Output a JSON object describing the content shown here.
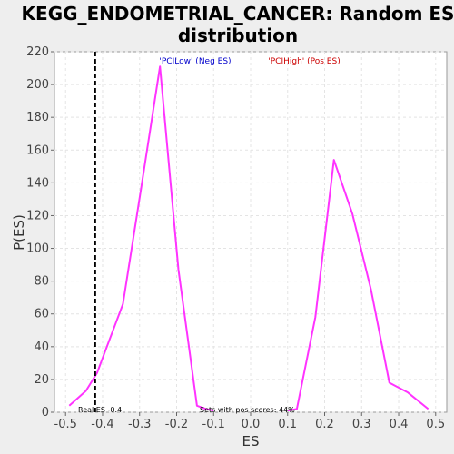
{
  "chart_data": {
    "type": "line",
    "title_line1": "KEGG_ENDOMETRIAL_CANCER: Random ES",
    "title_line2": "distribution",
    "xlabel": "ES",
    "ylabel": "P(ES)",
    "xlim": [
      -0.53,
      0.53
    ],
    "ylim": [
      0,
      220
    ],
    "xticks": [
      -0.5,
      -0.4,
      -0.3,
      -0.2,
      -0.1,
      0.0,
      0.1,
      0.2,
      0.3,
      0.4,
      0.5
    ],
    "xtick_labels": [
      "-0.5",
      "-0.4",
      "-0.3",
      "-0.2",
      "-0.1",
      "0.0",
      "0.1",
      "0.2",
      "0.3",
      "0.4",
      "0.5"
    ],
    "yticks": [
      0,
      20,
      40,
      60,
      80,
      100,
      120,
      140,
      160,
      180,
      200,
      220
    ],
    "ytick_labels": [
      "0",
      "20",
      "40",
      "60",
      "80",
      "100",
      "120",
      "140",
      "160",
      "180",
      "200",
      "220"
    ],
    "grid": true,
    "series": [
      {
        "color": "#ff33ff",
        "x": [
          -0.49,
          -0.445,
          -0.415,
          -0.395,
          -0.345,
          -0.295,
          -0.245,
          -0.195,
          -0.145,
          -0.12,
          -0.1
        ],
        "y": [
          4,
          13,
          24,
          36,
          66,
          138,
          211,
          87,
          4,
          2,
          1
        ]
      },
      {
        "color": "#ff33ff",
        "x": [
          0.1,
          0.125,
          0.175,
          0.225,
          0.275,
          0.325,
          0.375,
          0.425,
          0.48
        ],
        "y": [
          1,
          2,
          58,
          154,
          121,
          75,
          18,
          12,
          2
        ]
      }
    ],
    "real_es": -0.42,
    "legend_neg": "'PCILow' (Neg ES)",
    "legend_pos": "'PCIHigh' (Pos ES)",
    "legend_neg_color": "#0000cc",
    "legend_pos_color": "#cc0000",
    "annotation_real_es": "Real ES -0.4",
    "annotation_sets": "Sets with pos scores: 44%"
  }
}
